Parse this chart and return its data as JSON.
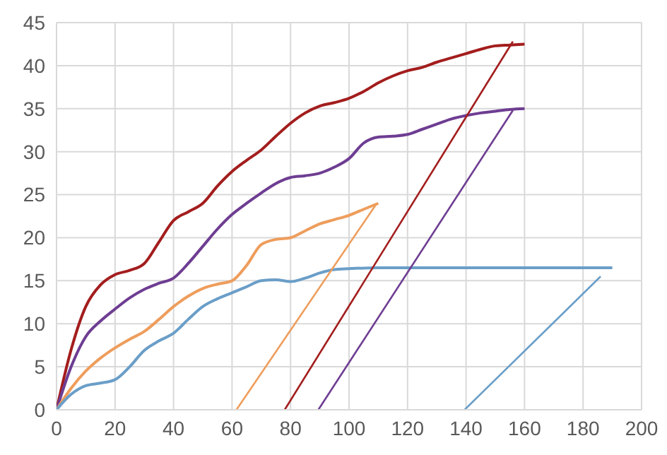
{
  "chart_data": {
    "type": "line",
    "xlim": [
      0,
      200
    ],
    "xticks": [
      0,
      20,
      40,
      60,
      80,
      100,
      120,
      140,
      160,
      180,
      200
    ],
    "ylim": [
      0,
      45
    ],
    "yticks": [
      0,
      5,
      10,
      15,
      20,
      25,
      30,
      35,
      40,
      45
    ],
    "grid": true,
    "legend": false,
    "marker": "none",
    "line_style": "solid",
    "series": [
      {
        "color": "#a31d1d",
        "x": [
          0,
          5,
          10,
          15,
          20,
          25,
          30,
          35,
          40,
          45,
          50,
          55,
          60,
          65,
          70,
          75,
          80,
          85,
          90,
          95,
          100,
          105,
          110,
          115,
          120,
          125,
          130,
          135,
          140,
          145,
          150,
          155,
          160
        ],
        "values": [
          0,
          7,
          12,
          14.5,
          15.7,
          16.2,
          17,
          19.5,
          22,
          23,
          24,
          26,
          27.7,
          29,
          30.2,
          31.8,
          33.3,
          34.5,
          35.3,
          35.7,
          36.2,
          37,
          38,
          38.8,
          39.4,
          39.8,
          40.4,
          40.9,
          41.4,
          41.9,
          42.3,
          42.4,
          42.5
        ]
      },
      {
        "color": "#6e3d92",
        "x": [
          0,
          5,
          10,
          15,
          20,
          25,
          30,
          35,
          40,
          45,
          50,
          55,
          60,
          65,
          70,
          75,
          80,
          85,
          90,
          95,
          100,
          105,
          110,
          115,
          120,
          125,
          130,
          135,
          140,
          145,
          150,
          155,
          160
        ],
        "values": [
          0,
          5,
          8.5,
          10.3,
          11.7,
          13,
          14,
          14.7,
          15.3,
          17,
          19,
          21,
          22.7,
          24,
          25.2,
          26.3,
          27,
          27.2,
          27.5,
          28.2,
          29.2,
          31,
          31.7,
          31.8,
          32,
          32.6,
          33.2,
          33.8,
          34.2,
          34.5,
          34.7,
          34.9,
          35
        ]
      },
      {
        "color": "#ee9d5c",
        "x": [
          0,
          5,
          10,
          15,
          20,
          25,
          30,
          35,
          40,
          45,
          50,
          55,
          60,
          65,
          70,
          75,
          80,
          85,
          90,
          95,
          100,
          105,
          110
        ],
        "values": [
          0,
          2.5,
          4.5,
          6,
          7.2,
          8.2,
          9.1,
          10.5,
          12,
          13.2,
          14.1,
          14.6,
          15,
          16.8,
          19.2,
          19.8,
          20,
          20.8,
          21.6,
          22.1,
          22.6,
          23.3,
          24
        ]
      },
      {
        "color": "#6a9ec8",
        "x": [
          0,
          5,
          10,
          15,
          20,
          25,
          30,
          35,
          40,
          45,
          50,
          55,
          60,
          65,
          70,
          75,
          80,
          85,
          90,
          95,
          100,
          110,
          190
        ],
        "values": [
          0,
          1.8,
          2.8,
          3.1,
          3.5,
          5,
          6.9,
          8,
          8.9,
          10.5,
          12,
          12.9,
          13.6,
          14.3,
          15,
          15.1,
          14.9,
          15.3,
          15.9,
          16.3,
          16.4,
          16.5,
          16.5
        ]
      },
      {
        "color": "#a31d1d",
        "x": [
          78,
          156
        ],
        "values": [
          0,
          42.8
        ]
      },
      {
        "color": "#6e3d92",
        "x": [
          89.5,
          156
        ],
        "values": [
          0,
          34.8
        ]
      },
      {
        "color": "#ee9d5c",
        "x": [
          61.5,
          109.5
        ],
        "values": [
          0,
          24
        ]
      },
      {
        "color": "#6a9ec8",
        "x": [
          139.5,
          186
        ],
        "values": [
          0,
          15.5
        ]
      }
    ]
  }
}
